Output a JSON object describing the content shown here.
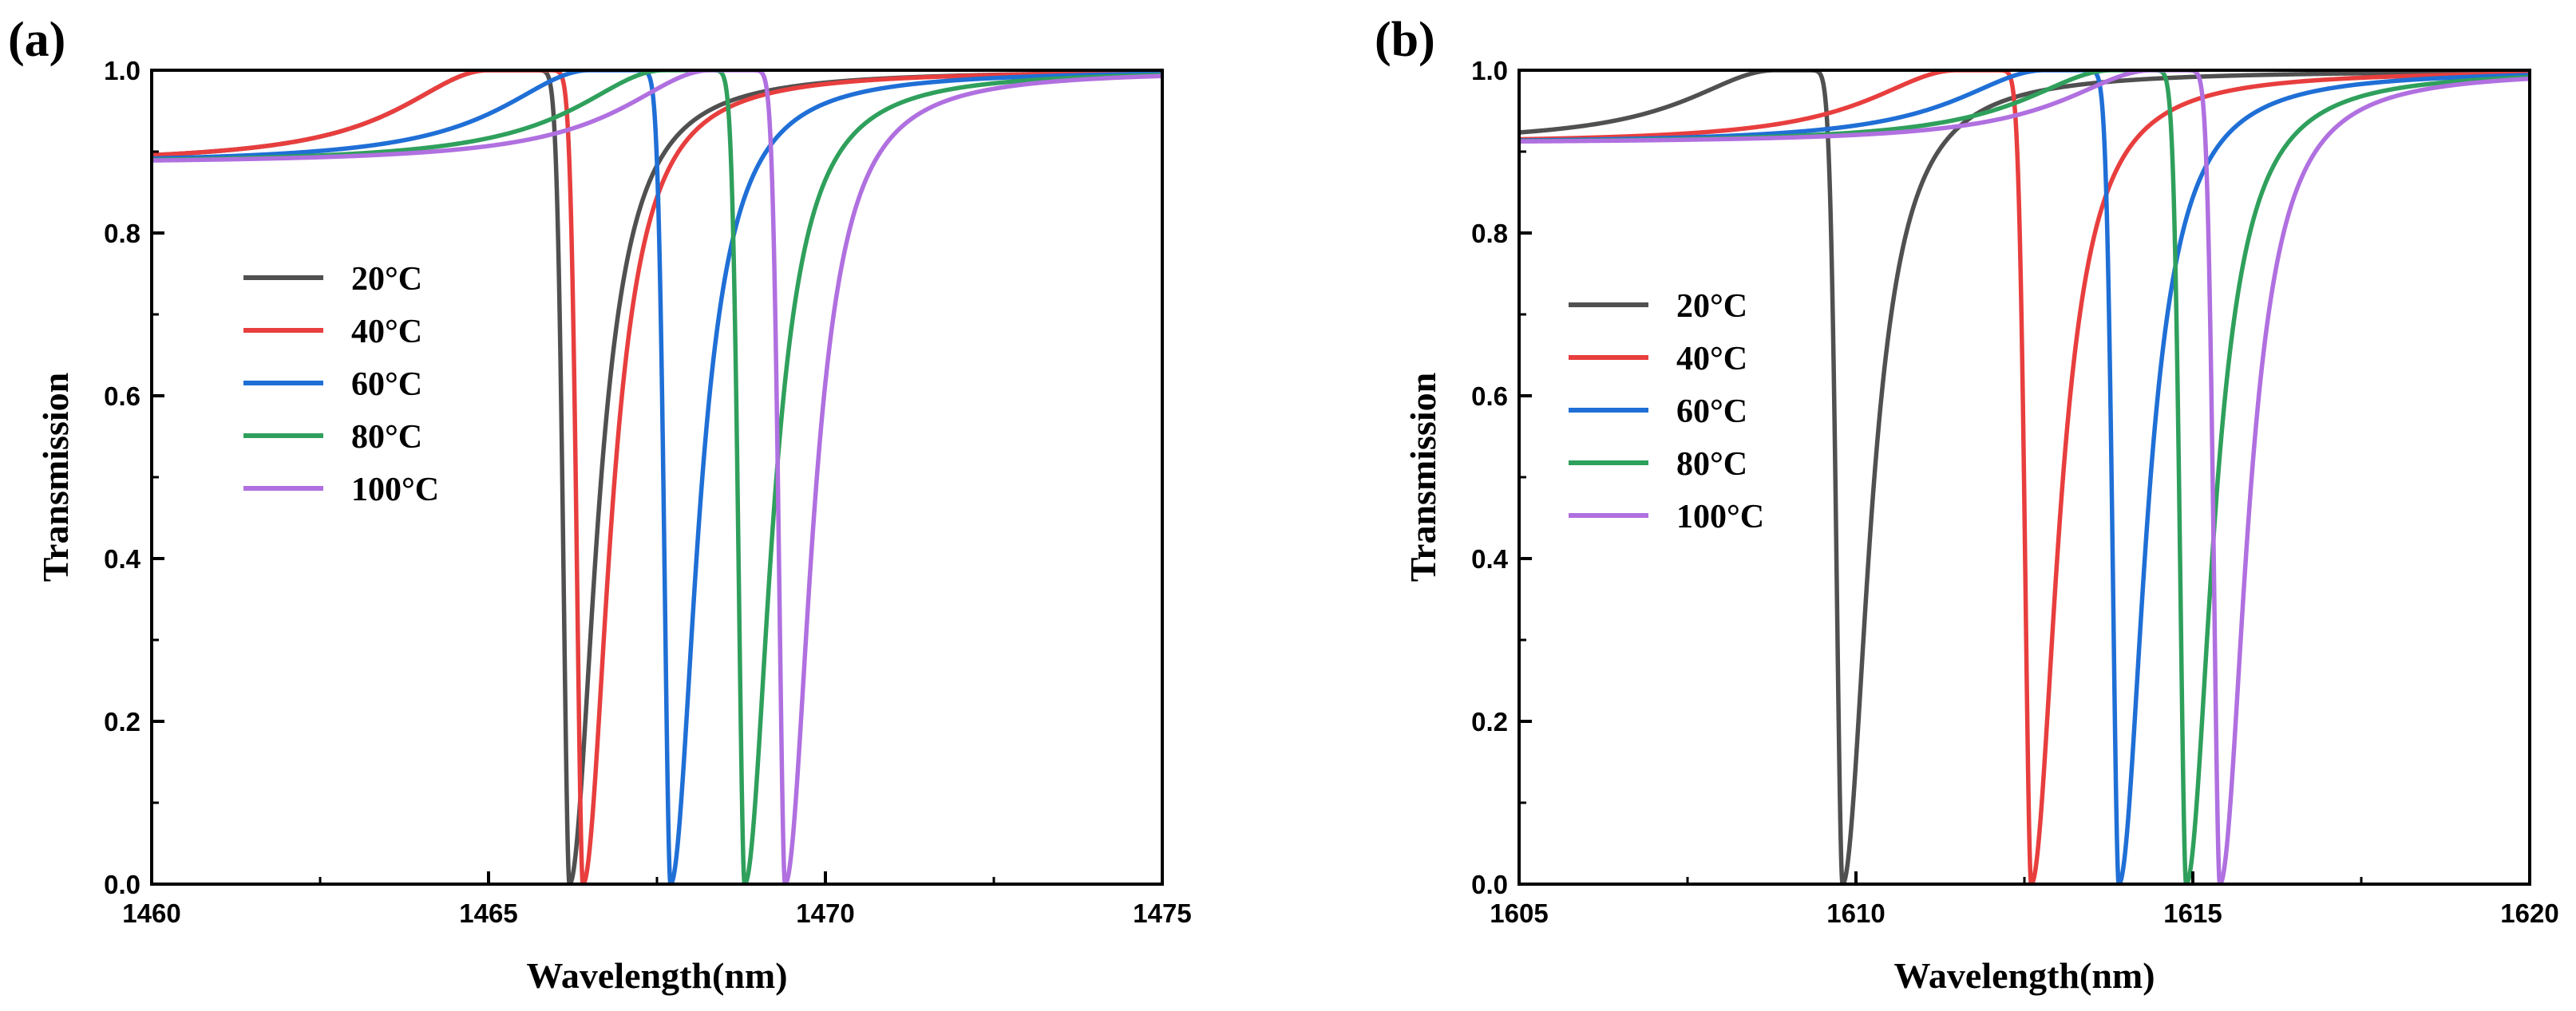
{
  "figure": {
    "panels": [
      {
        "label": "(a)"
      },
      {
        "label": "(b)"
      }
    ]
  },
  "chart_data": [
    {
      "type": "line",
      "panel": "(a)",
      "xlabel": "Wavelength(nm)",
      "ylabel": "Transmission",
      "xlim": [
        1460,
        1475
      ],
      "ylim": [
        0,
        1.0
      ],
      "xticks": [
        1460,
        1465,
        1470,
        1475
      ],
      "yticks": [
        0.0,
        0.2,
        0.4,
        0.6,
        0.8,
        1.0
      ],
      "tick_labels_x": [
        "1460",
        "1465",
        "1470",
        "1475"
      ],
      "tick_labels_y": [
        "0.0",
        "0.2",
        "0.4",
        "0.6",
        "0.8",
        "1.0"
      ],
      "legend_position": "center-left",
      "background_level": 0.885,
      "series": [
        {
          "name": "20°C",
          "color": "#505050",
          "dip_nm": 1466.2,
          "peak_nm": 1465.0,
          "peak_value": 1.0
        },
        {
          "name": "40°C",
          "color": "#e83e3e",
          "dip_nm": 1466.4,
          "peak_nm": 1465.0,
          "peak_value": 1.0
        },
        {
          "name": "60°C",
          "color": "#1f6fd6",
          "dip_nm": 1467.7,
          "peak_nm": 1466.5,
          "peak_value": 1.0
        },
        {
          "name": "80°C",
          "color": "#2fa05c",
          "dip_nm": 1468.8,
          "peak_nm": 1467.6,
          "peak_value": 1.0
        },
        {
          "name": "100°C",
          "color": "#b070e0",
          "dip_nm": 1469.4,
          "peak_nm": 1468.3,
          "peak_value": 1.0
        }
      ]
    },
    {
      "type": "line",
      "panel": "(b)",
      "xlabel": "Wavelength(nm)",
      "ylabel": "Transmission",
      "xlim": [
        1605,
        1620
      ],
      "ylim": [
        0,
        1.0
      ],
      "xticks": [
        1605,
        1610,
        1615,
        1620
      ],
      "yticks": [
        0.0,
        0.2,
        0.4,
        0.6,
        0.8,
        1.0
      ],
      "tick_labels_x": [
        "1605",
        "1610",
        "1615",
        "1620"
      ],
      "tick_labels_y": [
        "0.0",
        "0.2",
        "0.4",
        "0.6",
        "0.8",
        "1.0"
      ],
      "legend_position": "center-left",
      "background_level": 0.91,
      "series": [
        {
          "name": "20°C",
          "color": "#505050",
          "dip_nm": 1609.8,
          "peak_nm": 1608.8,
          "peak_value": 1.0
        },
        {
          "name": "40°C",
          "color": "#e83e3e",
          "dip_nm": 1612.6,
          "peak_nm": 1611.5,
          "peak_value": 1.0
        },
        {
          "name": "60°C",
          "color": "#1f6fd6",
          "dip_nm": 1613.9,
          "peak_nm": 1612.8,
          "peak_value": 1.0
        },
        {
          "name": "80°C",
          "color": "#2fa05c",
          "dip_nm": 1614.9,
          "peak_nm": 1613.8,
          "peak_value": 1.0
        },
        {
          "name": "100°C",
          "color": "#b070e0",
          "dip_nm": 1615.4,
          "peak_nm": 1614.4,
          "peak_value": 1.0
        }
      ]
    }
  ]
}
